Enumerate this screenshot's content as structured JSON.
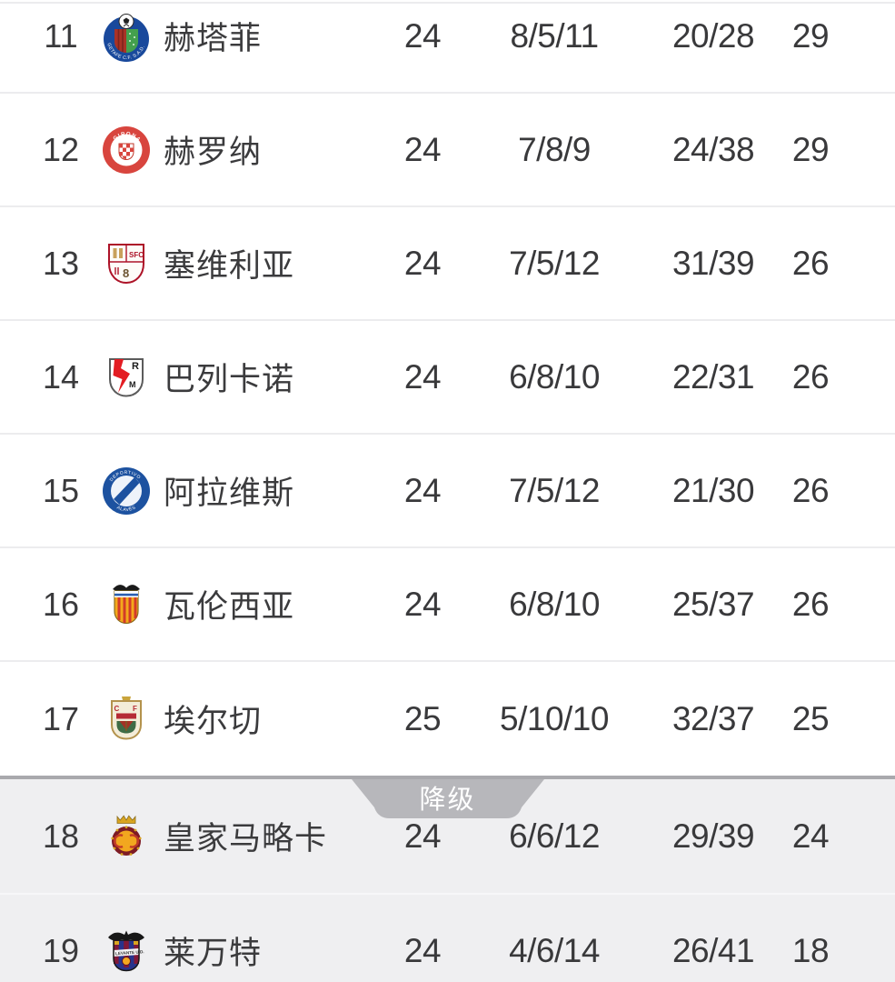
{
  "table": {
    "rows": [
      {
        "rank": "11",
        "team": "赫塔菲",
        "badge": "getafe-crest-icon",
        "played": "24",
        "wdl": "8/5/11",
        "goals": "20/28",
        "points": "29",
        "zone": "normal"
      },
      {
        "rank": "12",
        "team": "赫罗纳",
        "badge": "girona-crest-icon",
        "played": "24",
        "wdl": "7/8/9",
        "goals": "24/38",
        "points": "29",
        "zone": "normal"
      },
      {
        "rank": "13",
        "team": "塞维利亚",
        "badge": "sevilla-crest-icon",
        "played": "24",
        "wdl": "7/5/12",
        "goals": "31/39",
        "points": "26",
        "zone": "normal"
      },
      {
        "rank": "14",
        "team": "巴列卡诺",
        "badge": "rayo-vallecano-crest-icon",
        "played": "24",
        "wdl": "6/8/10",
        "goals": "22/31",
        "points": "26",
        "zone": "normal"
      },
      {
        "rank": "15",
        "team": "阿拉维斯",
        "badge": "alaves-crest-icon",
        "played": "24",
        "wdl": "7/5/12",
        "goals": "21/30",
        "points": "26",
        "zone": "normal"
      },
      {
        "rank": "16",
        "team": "瓦伦西亚",
        "badge": "valencia-crest-icon",
        "played": "24",
        "wdl": "6/8/10",
        "goals": "25/37",
        "points": "26",
        "zone": "normal"
      },
      {
        "rank": "17",
        "team": "埃尔切",
        "badge": "elche-crest-icon",
        "played": "25",
        "wdl": "5/10/10",
        "goals": "32/37",
        "points": "25",
        "zone": "normal"
      },
      {
        "rank": "18",
        "team": "皇家马略卡",
        "badge": "mallorca-crest-icon",
        "played": "24",
        "wdl": "6/6/12",
        "goals": "29/39",
        "points": "24",
        "zone": "relegation"
      },
      {
        "rank": "19",
        "team": "莱万特",
        "badge": "levante-crest-icon",
        "played": "24",
        "wdl": "4/6/14",
        "goals": "26/41",
        "points": "18",
        "zone": "relegation"
      }
    ]
  },
  "relegation_tab": {
    "label": "降级"
  },
  "colors": {
    "text": "#3a3a3c",
    "row_bg": "#ffffff",
    "relegation_bg": "#efeff1",
    "row_divider": "#ececee",
    "relegation_divider_line": "#a9a9ad",
    "relegation_tab_bg": "#b7b7bb",
    "relegation_tab_text": "#ffffff"
  }
}
